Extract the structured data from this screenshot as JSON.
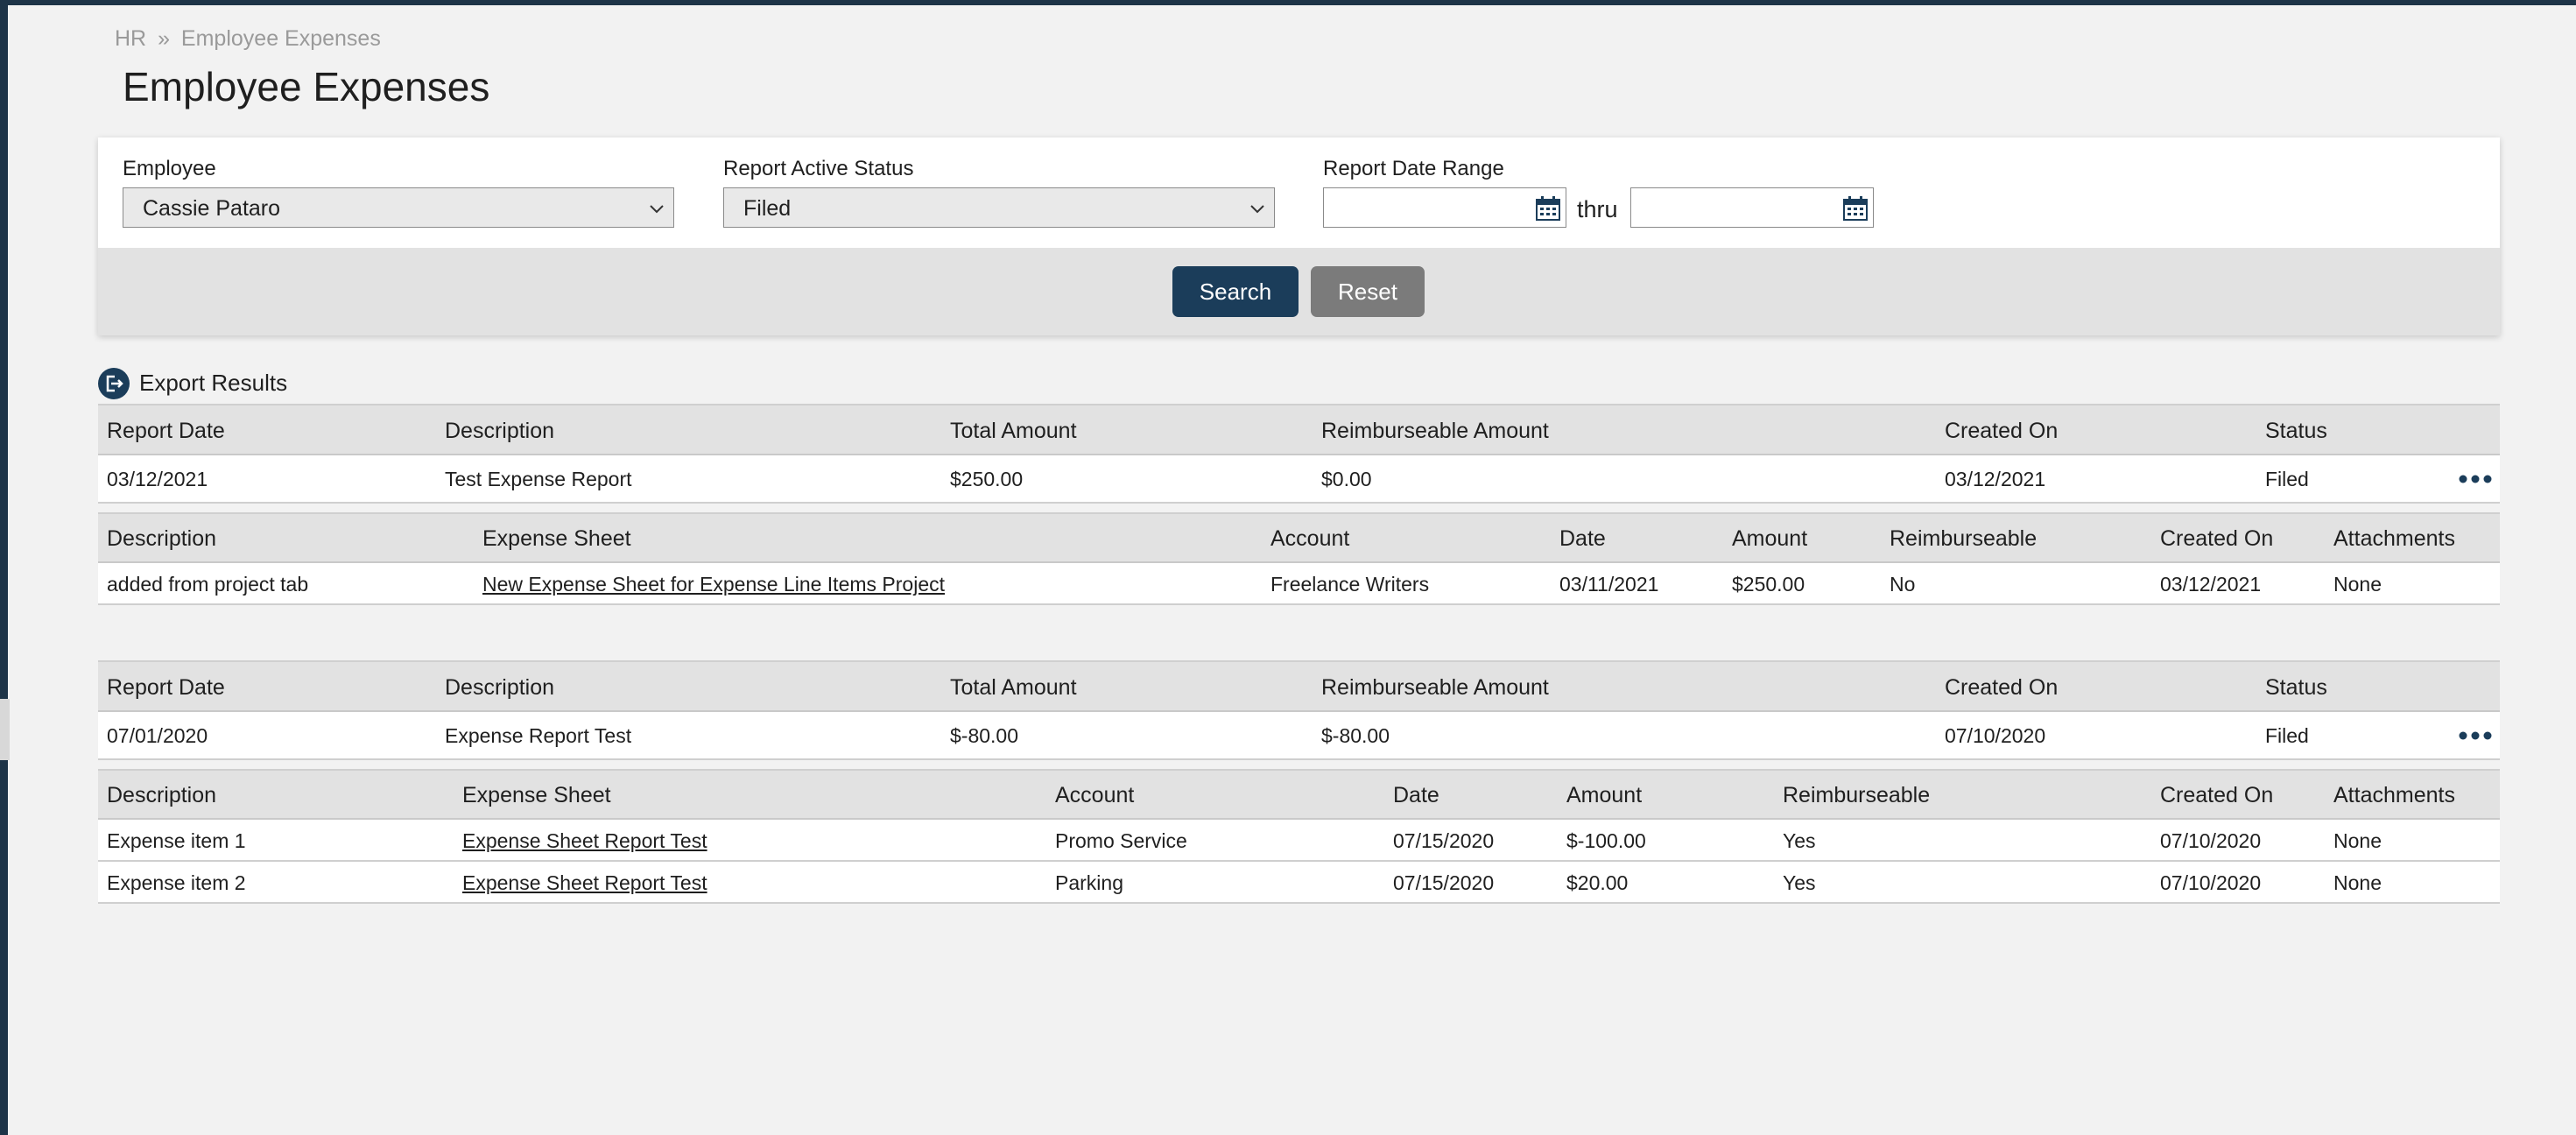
{
  "breadcrumb": {
    "root": "HR",
    "sep": "»",
    "current": "Employee Expenses"
  },
  "page_title": "Employee Expenses",
  "filters": {
    "employee_label": "Employee",
    "employee_value": "Cassie Pataro",
    "status_label": "Report Active Status",
    "status_value": "Filed",
    "date_range_label": "Report Date Range",
    "date_from": "",
    "date_to": "",
    "thru_label": "thru",
    "search_label": "Search",
    "reset_label": "Reset"
  },
  "export_label": "Export Results",
  "report_columns": [
    "Report Date",
    "Description",
    "Total Amount",
    "Reimburseable Amount",
    "Created On",
    "Status"
  ],
  "line_columns": [
    "Description",
    "Expense Sheet",
    "Account",
    "Date",
    "Amount",
    "Reimburseable",
    "Created On",
    "Attachments"
  ],
  "reports": [
    {
      "report_date": "03/12/2021",
      "description": "Test Expense Report",
      "total_amount": "$250.00",
      "reimburseable_amount": "$0.00",
      "created_on": "03/12/2021",
      "status": "Filed",
      "lines": [
        {
          "description": "added from project tab",
          "expense_sheet": "New Expense Sheet for Expense Line Items Project",
          "account": "Freelance Writers",
          "date": "03/11/2021",
          "amount": "$250.00",
          "reimburseable": "No",
          "created_on": "03/12/2021",
          "attachments": "None"
        }
      ]
    },
    {
      "report_date": "07/01/2020",
      "description": "Expense Report Test",
      "total_amount": "$-80.00",
      "reimburseable_amount": "$-80.00",
      "created_on": "07/10/2020",
      "status": "Filed",
      "lines": [
        {
          "description": "Expense item 1",
          "expense_sheet": "Expense Sheet Report Test",
          "account": "Promo Service",
          "date": "07/15/2020",
          "amount": "$-100.00",
          "reimburseable": "Yes",
          "created_on": "07/10/2020",
          "attachments": "None"
        },
        {
          "description": "Expense item 2",
          "expense_sheet": "Expense Sheet Report Test",
          "account": "Parking",
          "date": "07/15/2020",
          "amount": "$20.00",
          "reimburseable": "Yes",
          "created_on": "07/10/2020",
          "attachments": "None"
        }
      ]
    }
  ],
  "colors": {
    "primary": "#1b3d5a",
    "nav": "#1e3448",
    "reset": "#7b7b7b",
    "header_bg": "#e2e2e2",
    "page_bg": "#f2f2f2"
  },
  "icons": {
    "select_arrow": "chevron-down-icon",
    "date": "calendar-icon",
    "export": "export-icon",
    "row_menu": "more-icon"
  }
}
